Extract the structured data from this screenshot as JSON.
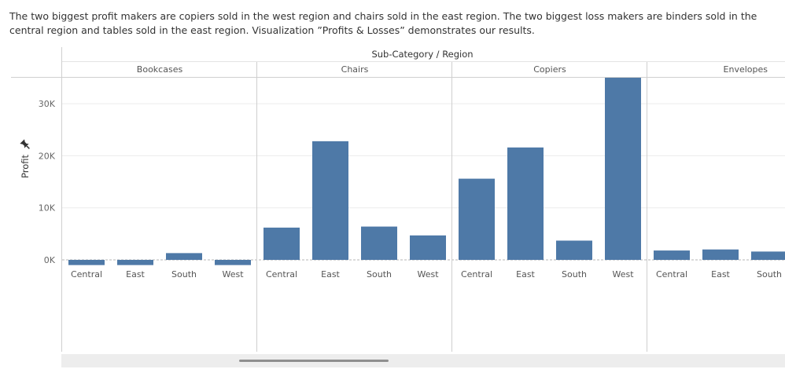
{
  "caption": "The two biggest profit makers are copiers sold in the west region and chairs sold in the east region. The two biggest loss makers are binders sold in the central region and tables sold in the east region. Visualization ”Profits & Losses” demonstrates our results.",
  "chart_data": {
    "type": "bar",
    "header_title": "Sub-Category / Region",
    "ylabel": "Profit",
    "ylim": [
      -1500,
      35000
    ],
    "yticks": [
      0,
      10000,
      20000,
      30000
    ],
    "ytick_labels": [
      "0K",
      "10K",
      "20K",
      "30K"
    ],
    "bar_color": "#4e79a7",
    "groups": [
      {
        "name": "Bookcases",
        "regions": [
          "Central",
          "East",
          "South",
          "West"
        ],
        "values": [
          -1000,
          -1000,
          1300,
          -1000
        ]
      },
      {
        "name": "Chairs",
        "regions": [
          "Central",
          "East",
          "South",
          "West"
        ],
        "values": [
          6200,
          22800,
          6400,
          4700
        ]
      },
      {
        "name": "Copiers",
        "regions": [
          "Central",
          "East",
          "South",
          "West"
        ],
        "values": [
          15600,
          21600,
          3700,
          35000
        ]
      },
      {
        "name": "Envelopes",
        "regions": [
          "Central",
          "East",
          "South"
        ],
        "values": [
          1800,
          2000,
          1600
        ]
      }
    ]
  },
  "pin_icon": "pin-icon"
}
